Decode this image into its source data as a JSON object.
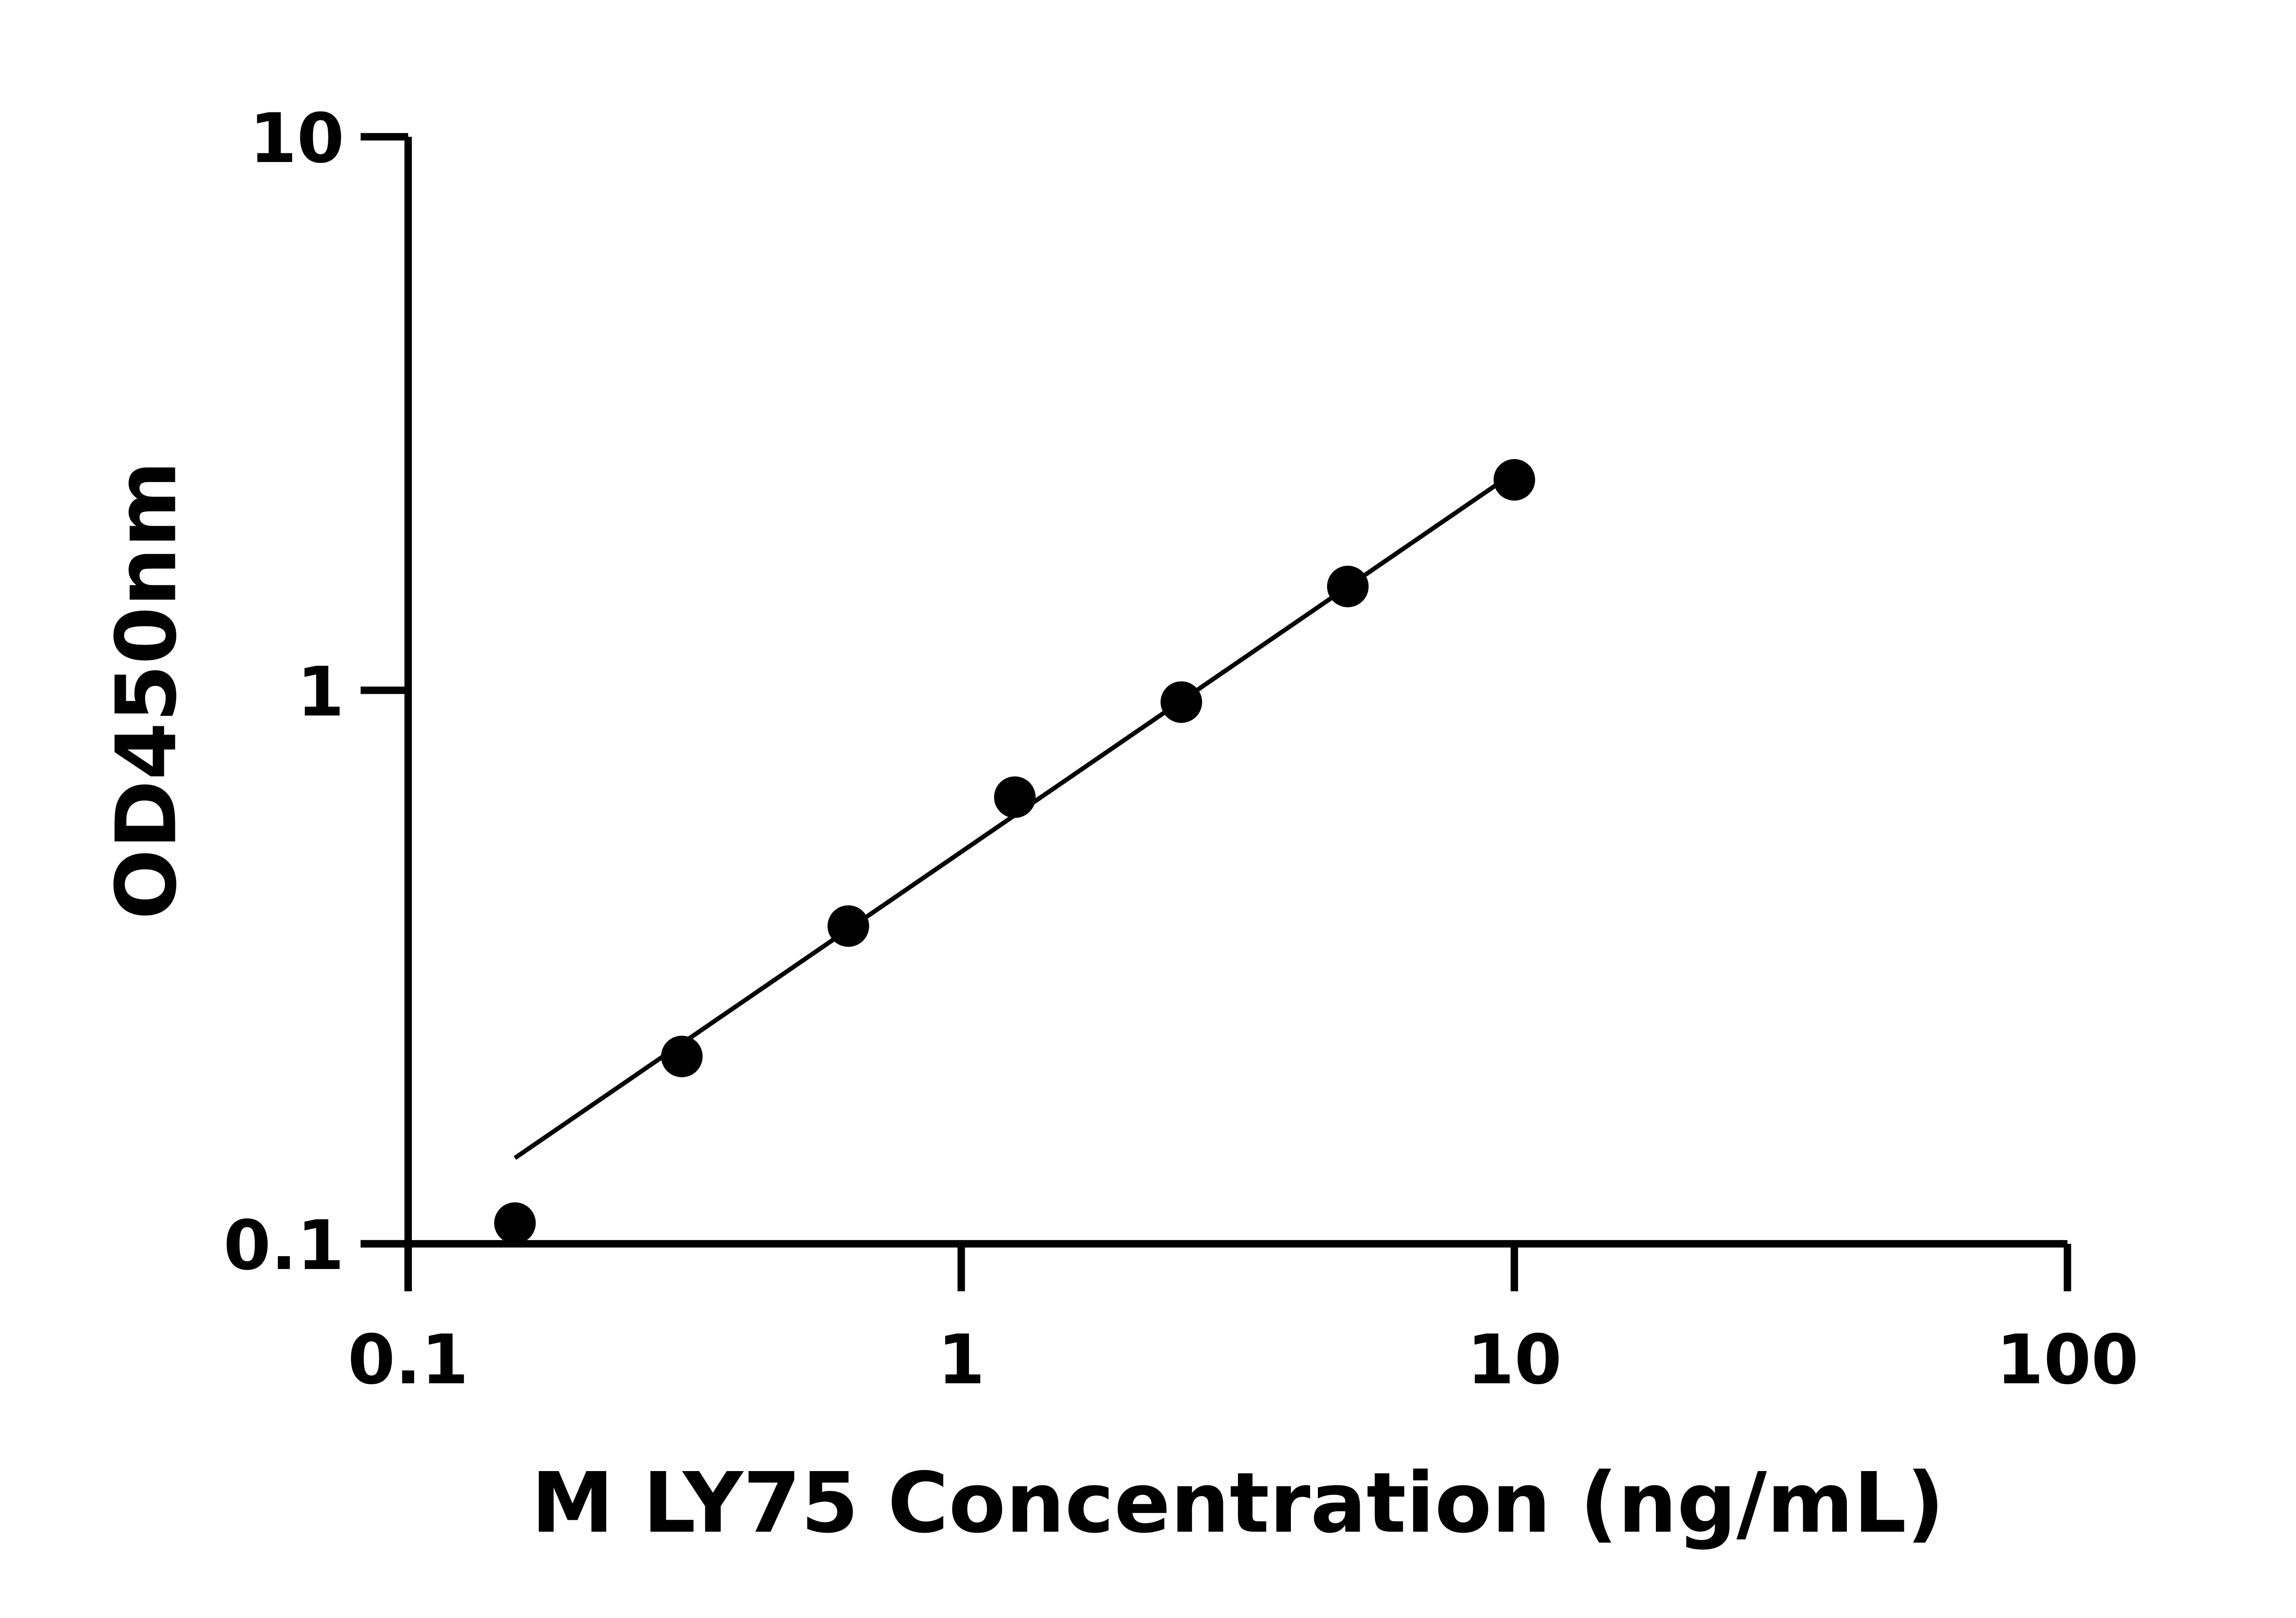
{
  "chart_data": {
    "type": "scatter",
    "title": "",
    "xlabel": "M LY75 Concentration (ng/mL)",
    "ylabel": "OD450nm",
    "x_scale": "log",
    "y_scale": "log",
    "xlim": [
      0.1,
      100
    ],
    "ylim": [
      0.1,
      10
    ],
    "x_ticks": [
      "0.1",
      "1",
      "10",
      "100"
    ],
    "y_ticks": [
      "0.1",
      "1",
      "10"
    ],
    "grid": false,
    "fit_line": true,
    "marker_color": "#000000",
    "points": [
      {
        "x": 0.156,
        "y": 0.109
      },
      {
        "x": 0.3125,
        "y": 0.218
      },
      {
        "x": 0.625,
        "y": 0.375
      },
      {
        "x": 1.25,
        "y": 0.641
      },
      {
        "x": 2.5,
        "y": 0.952
      },
      {
        "x": 5,
        "y": 1.54
      },
      {
        "x": 10,
        "y": 2.4
      }
    ]
  }
}
